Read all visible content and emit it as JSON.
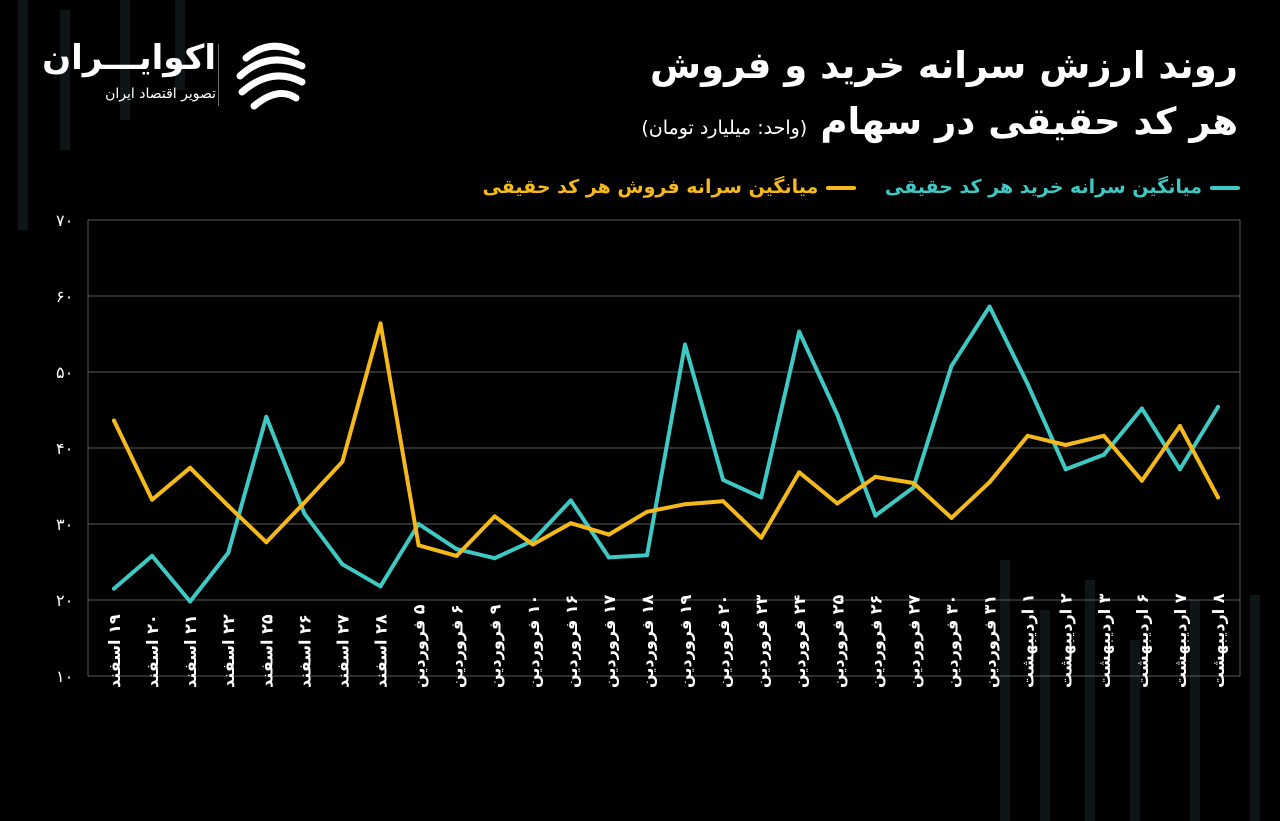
{
  "header": {
    "title_line1": "روند ارزش سرانه خرید و فروش",
    "title_line2": "هر کد حقیقی در سهام",
    "unit": "(واحد: میلیارد تومان)"
  },
  "logo": {
    "name": "اکوایـــران",
    "tagline": "تصویر اقتصاد ایران",
    "icon": "ekoiran-logo-icon"
  },
  "colors": {
    "background": "#000000",
    "buy": "#3ec9c4",
    "sell": "#f5b91a",
    "grid": "#5a5a5a",
    "text": "#ffffff"
  },
  "chart_data": {
    "type": "line",
    "title": "روند ارزش سرانه خرید و فروش هر کد حقیقی در سهام",
    "unit": "(واحد: میلیارد تومان)",
    "ylim": [
      10,
      70
    ],
    "yticks": [
      "۱۰",
      "۲۰",
      "۳۰",
      "۴۰",
      "۵۰",
      "۶۰",
      "۷۰"
    ],
    "ytick_values": [
      10,
      20,
      30,
      40,
      50,
      60,
      70
    ],
    "grid": true,
    "legend_position": "top-right",
    "categories": [
      "۱۹ اسفند",
      "۲۰ اسفند",
      "۲۱ اسفند",
      "۲۲ اسفند",
      "۲۵ اسفند",
      "۲۶ اسفند",
      "۲۷ اسفند",
      "۲۸ اسفند",
      "۵ فروردین",
      "۶ فروردین",
      "۹ فروردین",
      "۱۰ فروردین",
      "۱۶ فروردین",
      "۱۷ فروردین",
      "۱۸ فروردین",
      "۱۹ فروردین",
      "۲۰ فروردین",
      "۲۳ فروردین",
      "۲۴ فروردین",
      "۲۵ فروردین",
      "۲۶ فروردین",
      "۲۷ فروردین",
      "۳۰ فروردین",
      "۳۱ فروردین",
      "۱ اردیبهشت",
      "۲ اردیبهشت",
      "۳ اردیبهشت",
      "۶ اردیبهشت",
      "۷ اردیبهشت",
      "۸ اردیبهشت"
    ],
    "series": [
      {
        "name": "میانگین سرانه خرید هر کد حقیقی",
        "color": "#3ec9c4",
        "values": [
          21.5,
          25.8,
          19.8,
          26.2,
          44.1,
          31.4,
          24.7,
          21.8,
          30.0,
          26.7,
          25.5,
          27.8,
          33.1,
          25.6,
          25.9,
          53.6,
          35.8,
          33.5,
          55.3,
          44.4,
          31.1,
          34.8,
          50.8,
          58.6,
          48.4,
          37.2,
          39.1,
          45.2,
          37.2,
          45.4
        ]
      },
      {
        "name": "میانگین سرانه فروش هر کد حقیقی",
        "color": "#f5b91a",
        "values": [
          43.6,
          33.2,
          37.4,
          32.4,
          27.6,
          32.8,
          38.2,
          56.4,
          27.2,
          25.8,
          31.0,
          27.3,
          30.1,
          28.6,
          31.6,
          32.6,
          33.0,
          28.2,
          36.8,
          32.7,
          36.2,
          35.4,
          30.8,
          35.5,
          41.6,
          40.4,
          41.6,
          35.7,
          42.9,
          33.5
        ]
      }
    ]
  }
}
